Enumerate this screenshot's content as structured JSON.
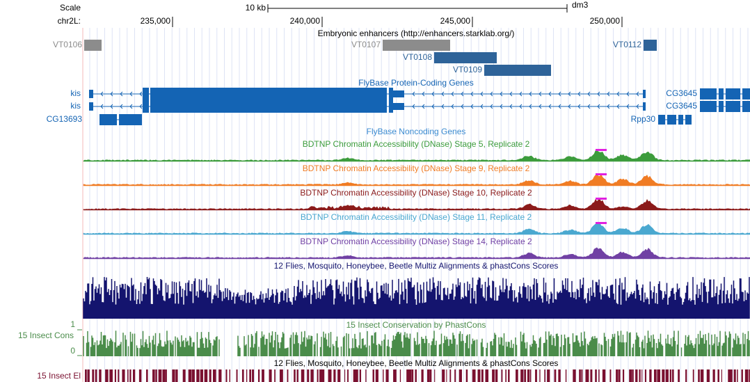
{
  "ruler": {
    "scale_label": "Scale",
    "scale_bar": "10 kb",
    "assembly": "dm3",
    "chrom": "chr2L:",
    "ticks": [
      "235,000",
      "240,000",
      "245,000",
      "250,000"
    ]
  },
  "enhancers": {
    "title": "Embryonic enhancers (http://enhancers.starklab.org/)",
    "items": [
      "VT0106",
      "VT0107",
      "VT0108",
      "VT0109",
      "VT0112"
    ]
  },
  "protein_genes": {
    "title": "FlyBase Protein-Coding Genes",
    "labels": [
      "kis",
      "kis",
      "CG13693",
      "CG3645",
      "CG3645",
      "Rpp30"
    ]
  },
  "noncoding_genes": {
    "title": "FlyBase Noncoding Genes"
  },
  "dnase_tracks": [
    "BDTNP Chromatin Accessibility (DNase) Stage 5, Replicate 2",
    "BDTNP Chromatin Accessibility (DNase) Stage 9, Replicate 2",
    "BDTNP Chromatin Accessibility (DNase) Stage 10, Replicate 2",
    "BDTNP Chromatin Accessibility (DNase) Stage 11, Replicate 2",
    "BDTNP Chromatin Accessibility (DNase) Stage 14, Replicate 2"
  ],
  "multiz": {
    "title": "12 Flies, Mosquito, Honeybee, Beetle Multiz Alignments & phastCons Scores"
  },
  "conservation": {
    "title": "15 Insect Conservation by PhastCons",
    "side_label": "15 Insect Cons",
    "axis_max": 1,
    "axis_min": 0
  },
  "elements": {
    "title": "12 Flies, Mosquito, Honeybee, Beetle Multiz Alignments & phastCons Scores",
    "side_label": "15 Insect El"
  }
}
